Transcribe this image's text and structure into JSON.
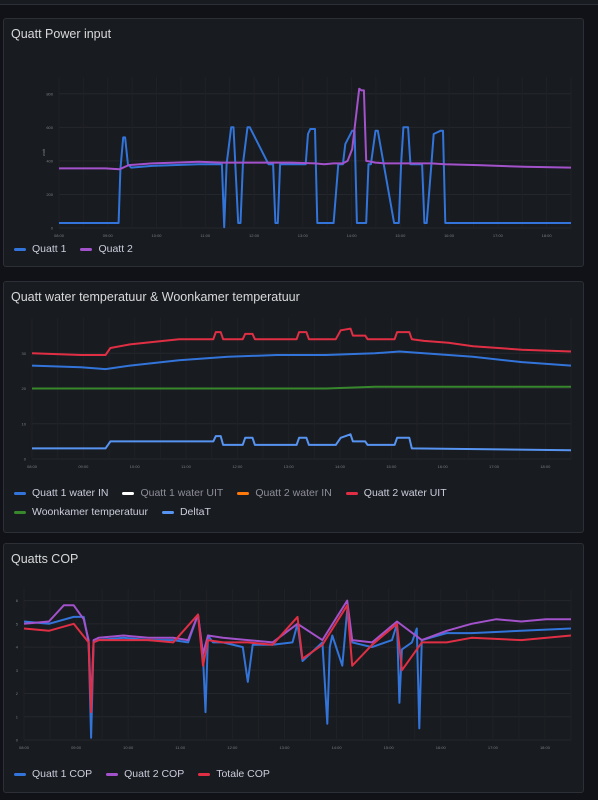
{
  "colors": {
    "blue": "#3274d9",
    "purple": "#a352cc",
    "red": "#e02f44",
    "green": "#37872d",
    "white": "#ffffff",
    "orange": "#ff780a",
    "lightblue": "#5794f2",
    "grid": "#2a2d33",
    "axis_text": "#6e7079"
  },
  "panels": [
    {
      "title": "Quatt Power input",
      "legend": [
        {
          "label": "Quatt 1",
          "color": "#3274d9"
        },
        {
          "label": "Quatt 2",
          "color": "#a352cc"
        }
      ]
    },
    {
      "title": "Quatt water temperatuur & Woonkamer temperatuur",
      "legend": [
        {
          "label": "Quatt 1 water IN",
          "color": "#3274d9"
        },
        {
          "label": "Quatt 1 water UIT",
          "color": "#ffffff",
          "dim": true
        },
        {
          "label": "Quatt 2 water IN",
          "color": "#ff780a",
          "dim": true
        },
        {
          "label": "Quatt 2 water UIT",
          "color": "#e02f44"
        },
        {
          "label": "Woonkamer temperatuur",
          "color": "#37872d"
        },
        {
          "label": "DeltaT",
          "color": "#5794f2"
        }
      ]
    },
    {
      "title": "Quatts COP",
      "legend": [
        {
          "label": "Quatt 1 COP",
          "color": "#3274d9"
        },
        {
          "label": "Quatt 2 COP",
          "color": "#a352cc"
        },
        {
          "label": "Totale COP",
          "color": "#e02f44"
        }
      ]
    }
  ],
  "chart_data": [
    {
      "type": "line",
      "title": "Quatt Power input",
      "ylabel": "watt",
      "ylim": [
        0,
        900
      ],
      "yticks": [
        0,
        200,
        400,
        600,
        800
      ],
      "xlim": [
        0,
        11
      ],
      "xticks": [
        "08:00",
        "08:30",
        "09:00",
        "09:30",
        "10:00",
        "10:30",
        "11:00",
        "11:30",
        "12:00",
        "12:30",
        "13:00",
        "13:30",
        "14:00",
        "14:30",
        "15:00",
        "15:30",
        "16:00",
        "16:30",
        "17:00",
        "17:30",
        "18:00",
        "18:30"
      ],
      "series": [
        {
          "name": "Quatt 1",
          "x": [
            0,
            1.28,
            1.32,
            1.38,
            1.42,
            1.48,
            1.55,
            2,
            3,
            3.3,
            3.5,
            3.55,
            3.6,
            3.7,
            3.75,
            3.85,
            3.9,
            3.95,
            4.05,
            4.1,
            4.5,
            4.6,
            4.65,
            4.7,
            4.75,
            5.3,
            5.35,
            5.4,
            5.5,
            5.55,
            5.9,
            6,
            6.1,
            6.15,
            6.3,
            6.35,
            6.4,
            6.6,
            6.65,
            6.7,
            6.8,
            6.85,
            7.2,
            7.3,
            7.35,
            7.4,
            7.5,
            7.55,
            7.8,
            7.85,
            7.9,
            8,
            8.05,
            8.2,
            8.25,
            8.3,
            11
          ],
          "y": [
            30,
            30,
            350,
            540,
            540,
            380,
            360,
            370,
            380,
            380,
            380,
            5,
            380,
            600,
            600,
            30,
            30,
            380,
            600,
            600,
            380,
            380,
            30,
            30,
            380,
            380,
            560,
            590,
            590,
            30,
            30,
            380,
            380,
            500,
            580,
            580,
            30,
            30,
            380,
            380,
            580,
            580,
            30,
            30,
            380,
            600,
            600,
            380,
            380,
            30,
            30,
            380,
            560,
            580,
            580,
            30,
            30
          ]
        },
        {
          "name": "Quatt 2",
          "x": [
            0,
            1,
            1.3,
            1.5,
            2,
            2.5,
            3,
            3.5,
            4,
            4.5,
            5,
            5.5,
            5.7,
            5.9,
            6.1,
            6.2,
            6.3,
            6.45,
            6.5,
            6.55,
            6.6,
            6.8,
            7,
            7.5,
            8,
            8.3,
            9,
            10,
            11
          ],
          "y": [
            355,
            355,
            350,
            375,
            385,
            390,
            395,
            390,
            390,
            390,
            390,
            385,
            380,
            385,
            385,
            400,
            470,
            830,
            820,
            820,
            400,
            390,
            385,
            385,
            385,
            380,
            375,
            365,
            360
          ]
        }
      ]
    },
    {
      "type": "line",
      "title": "Quatt water temperatuur & Woonkamer temperatuur",
      "ylim": [
        0,
        40
      ],
      "yticks": [
        0,
        10,
        20,
        30
      ],
      "xlim": [
        0,
        11
      ],
      "xticks": [
        "08:00",
        "08:30",
        "09:00",
        "09:30",
        "10:00",
        "10:30",
        "11:00",
        "11:30",
        "12:00",
        "12:30",
        "13:00",
        "13:30",
        "14:00",
        "14:30",
        "15:00",
        "15:30",
        "16:00",
        "16:30",
        "17:00",
        "17:30",
        "18:00",
        "18:30"
      ],
      "series": [
        {
          "name": "Quatt 1 water IN",
          "x": [
            0,
            1,
            1.5,
            2,
            3,
            4,
            5,
            6,
            7,
            7.5,
            8,
            9,
            10,
            11
          ],
          "y": [
            26.5,
            26,
            25.5,
            26.5,
            28,
            29,
            29.5,
            29.5,
            30,
            30.5,
            30,
            29,
            27.5,
            26.5
          ]
        },
        {
          "name": "Quatt 2 water UIT",
          "x": [
            0,
            1,
            1.5,
            1.6,
            2,
            3,
            3.7,
            3.75,
            3.85,
            3.9,
            4.3,
            4.35,
            4.5,
            4.55,
            5,
            5.4,
            5.45,
            5.6,
            5.65,
            6.2,
            6.3,
            6.5,
            6.55,
            6.8,
            6.85,
            7.4,
            7.45,
            7.7,
            7.75,
            8,
            8.5,
            9,
            10,
            11
          ],
          "y": [
            30,
            29.5,
            29.5,
            31.5,
            32.5,
            34,
            34,
            36,
            36,
            34,
            34,
            35.5,
            35.5,
            34,
            34,
            34,
            36,
            36,
            34,
            34,
            36.5,
            37,
            35,
            35,
            34,
            34,
            36,
            36,
            34,
            33.5,
            33,
            32,
            31,
            30.5
          ]
        },
        {
          "name": "Woonkamer temperatuur",
          "x": [
            0,
            5,
            6,
            7,
            8,
            9,
            10,
            11
          ],
          "y": [
            20,
            20,
            20,
            20.5,
            20.5,
            20.5,
            20.5,
            20.5
          ]
        },
        {
          "name": "DeltaT",
          "x": [
            0,
            1.5,
            1.6,
            3.7,
            3.75,
            3.85,
            3.9,
            4.3,
            4.35,
            4.5,
            4.55,
            5.4,
            5.45,
            5.6,
            5.65,
            6.2,
            6.3,
            6.5,
            6.55,
            6.8,
            6.85,
            7.4,
            7.45,
            7.7,
            7.75,
            11
          ],
          "y": [
            3,
            3,
            5,
            5,
            6.5,
            6.5,
            4,
            4,
            6,
            6,
            4,
            4,
            6,
            6,
            4,
            4,
            6,
            7,
            5,
            5,
            4,
            4,
            6,
            6,
            3,
            2.5
          ]
        }
      ]
    },
    {
      "type": "line",
      "title": "Quatts COP",
      "ylim": [
        0,
        6.5
      ],
      "yticks": [
        0,
        1,
        2,
        3,
        4,
        5,
        6
      ],
      "xlim": [
        0,
        11
      ],
      "xticks": [
        "08:00",
        "08:30",
        "09:00",
        "09:30",
        "10:00",
        "10:30",
        "11:00",
        "11:30",
        "12:00",
        "12:30",
        "13:00",
        "13:30",
        "14:00",
        "14:30",
        "15:00",
        "15:30",
        "16:00",
        "16:30",
        "17:00",
        "17:30",
        "18:00",
        "18:30"
      ],
      "series": [
        {
          "name": "Quatt 1 COP",
          "x": [
            0,
            0.5,
            1,
            1.2,
            1.3,
            1.35,
            1.4,
            1.5,
            2,
            2.5,
            3,
            3.3,
            3.5,
            3.6,
            3.65,
            3.7,
            3.8,
            4,
            4.4,
            4.5,
            4.6,
            5,
            5.4,
            5.5,
            5.6,
            6,
            6.1,
            6.15,
            6.2,
            6.4,
            6.5,
            6.6,
            6.8,
            7,
            7.4,
            7.5,
            7.55,
            7.6,
            7.8,
            7.9,
            7.95,
            8,
            8.5,
            9,
            10,
            11
          ],
          "y": [
            5.1,
            5,
            5.3,
            5.3,
            4.2,
            0.1,
            4.2,
            4.3,
            4.4,
            4.3,
            4.3,
            4.2,
            5.4,
            3.6,
            1.2,
            4.5,
            4.2,
            4.2,
            4,
            2.5,
            4.1,
            4.1,
            4.2,
            5,
            3.4,
            4.2,
            0.7,
            4.0,
            4.5,
            3.2,
            5.6,
            4.2,
            4.1,
            4.0,
            4.3,
            5.0,
            1.6,
            3.9,
            4.2,
            4.8,
            0.5,
            4.3,
            4.6,
            4.6,
            4.7,
            4.8
          ]
        },
        {
          "name": "Quatt 2 COP",
          "x": [
            0,
            0.5,
            0.8,
            1,
            1.2,
            1.3,
            1.35,
            1.4,
            1.5,
            2,
            2.5,
            3,
            3.3,
            3.5,
            3.6,
            3.7,
            4,
            4.5,
            5,
            5.5,
            6,
            6.5,
            6.6,
            7,
            7.5,
            8,
            8.5,
            9,
            9.5,
            10,
            10.5,
            11
          ],
          "y": [
            5.0,
            5.1,
            5.8,
            5.8,
            5.2,
            4.3,
            1.5,
            4.3,
            4.4,
            4.5,
            4.4,
            4.4,
            4.3,
            5.4,
            3.7,
            4.5,
            4.4,
            4.3,
            4.2,
            5.0,
            4.3,
            6.0,
            4.3,
            4.2,
            5.1,
            4.3,
            4.7,
            5.0,
            5.2,
            5.1,
            5.2,
            5.2
          ]
        },
        {
          "name": "Totale COP",
          "x": [
            0,
            0.5,
            1,
            1.3,
            1.35,
            1.4,
            1.5,
            2,
            2.5,
            3,
            3.5,
            3.6,
            3.7,
            4,
            4.5,
            5,
            5.5,
            5.6,
            6,
            6.5,
            6.6,
            7,
            7.5,
            7.6,
            8,
            8.5,
            9,
            10,
            11
          ],
          "y": [
            4.8,
            4.7,
            5.0,
            4.2,
            1.2,
            4.2,
            4.3,
            4.3,
            4.3,
            4.2,
            5.4,
            3.2,
            4.3,
            4.2,
            4.2,
            4.1,
            5.3,
            3.5,
            4.1,
            5.8,
            3.2,
            4.1,
            5.0,
            3.0,
            4.2,
            4.2,
            4.4,
            4.3,
            4.5
          ]
        }
      ]
    }
  ]
}
